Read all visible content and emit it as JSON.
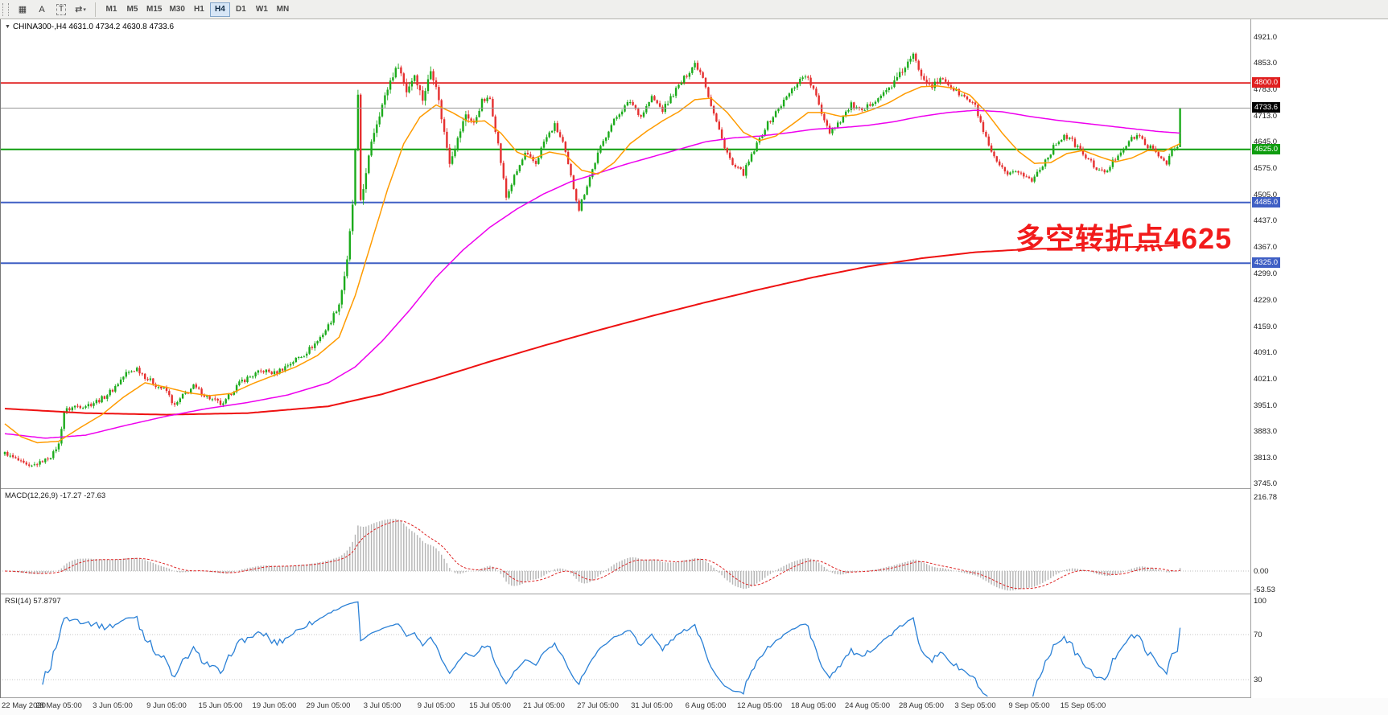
{
  "toolbar": {
    "icons": [
      {
        "name": "window-grid-icon",
        "glyph": "▦"
      },
      {
        "name": "font-tool-icon",
        "glyph": "A"
      },
      {
        "name": "text-tool-icon",
        "glyph": "T",
        "boxed": true
      },
      {
        "name": "cycle-arrows-icon",
        "glyph": "⇄",
        "caret": "▾"
      }
    ],
    "timeframes": [
      "M1",
      "M5",
      "M15",
      "M30",
      "H1",
      "H4",
      "D1",
      "W1",
      "MN"
    ],
    "active_timeframe": "H4"
  },
  "chart": {
    "symbol_line": "CHINA300-,H4 4631.0 4734.2 4630.8 4733.6",
    "symbol": "CHINA300-",
    "timeframe": "H4",
    "annotation": "多空转折点4625",
    "shift_marker": "▲",
    "price_axis_labels": [
      "4921.0",
      "4853.0",
      "4783.0",
      "4713.0",
      "4645.0",
      "4575.0",
      "4505.0",
      "4437.0",
      "4367.0",
      "4299.0",
      "4229.0",
      "4159.0",
      "4091.0",
      "4021.0",
      "3951.0",
      "3883.0",
      "3813.0",
      "3745.0"
    ],
    "hlines": [
      {
        "price": 4800.0,
        "label": "4800.0",
        "color": "#e01f1f",
        "width": 1.8
      },
      {
        "price": 4625.0,
        "label": "4625.0",
        "color": "#0f9d0f",
        "width": 2
      },
      {
        "price": 4485.0,
        "label": "4485.0",
        "color": "#3f5fc4",
        "width": 2
      },
      {
        "price": 4325.0,
        "label": "4325.0",
        "color": "#3f5fc4",
        "width": 2
      }
    ],
    "current_price": {
      "value": 4733.6,
      "label": "4733.6",
      "color": "#000000"
    },
    "time_axis": [
      "22 May 2020",
      "28 May 05:00",
      "3 Jun 05:00",
      "9 Jun 05:00",
      "15 Jun 05:00",
      "19 Jun 05:00",
      "29 Jun 05:00",
      "3 Jul 05:00",
      "9 Jul 05:00",
      "15 Jul 05:00",
      "21 Jul 05:00",
      "27 Jul 05:00",
      "31 Jul 05:00",
      "6 Aug 05:00",
      "12 Aug 05:00",
      "18 Aug 05:00",
      "24 Aug 05:00",
      "28 Aug 05:00",
      "3 Sep 05:00",
      "9 Sep 05:00",
      "15 Sep 05:00"
    ]
  },
  "macd_panel": {
    "title": "MACD(12,26,9) -17.27 -27.63",
    "axis": [
      {
        "label": "216.78",
        "value": 216.78
      },
      {
        "label": "0.00",
        "value": 0
      },
      {
        "label": "-53.53",
        "value": -53.53
      }
    ]
  },
  "rsi_panel": {
    "title": "RSI(14) 57.8797",
    "axis": [
      {
        "label": "100",
        "value": 100
      },
      {
        "label": "70",
        "value": 70
      },
      {
        "label": "30",
        "value": 30
      }
    ]
  },
  "chart_data": {
    "type": "candlestick",
    "bars": 437,
    "price_range": [
      3745.0,
      4921.0
    ],
    "last_candle": {
      "open": 4631.0,
      "high": 4734.2,
      "low": 4630.8,
      "close": 4733.6
    },
    "colors": {
      "up": "#1cab1c",
      "down": "#e53030",
      "ma_fast": "#ff9b00",
      "ma_mid": "#ee00ee",
      "ma_slow": "#ee1111",
      "macd_hist": "#b4b4b4",
      "macd_signal": "#dd2222",
      "rsi": "#2a80d6"
    },
    "price_path_anchors": [
      [
        0,
        3825
      ],
      [
        5,
        3805
      ],
      [
        9,
        3788
      ],
      [
        13,
        3800
      ],
      [
        17,
        3815
      ],
      [
        20,
        3848
      ],
      [
        22,
        3935
      ],
      [
        26,
        3948
      ],
      [
        31,
        3952
      ],
      [
        36,
        3968
      ],
      [
        40,
        3992
      ],
      [
        45,
        4035
      ],
      [
        49,
        4048
      ],
      [
        53,
        4020
      ],
      [
        57,
        4000
      ],
      [
        60,
        3988
      ],
      [
        63,
        3948
      ],
      [
        66,
        3975
      ],
      [
        70,
        4000
      ],
      [
        74,
        3978
      ],
      [
        78,
        3962
      ],
      [
        81,
        3950
      ],
      [
        84,
        3985
      ],
      [
        88,
        4015
      ],
      [
        92,
        4030
      ],
      [
        96,
        4042
      ],
      [
        100,
        4035
      ],
      [
        104,
        4052
      ],
      [
        108,
        4072
      ],
      [
        112,
        4092
      ],
      [
        116,
        4120
      ],
      [
        120,
        4160
      ],
      [
        124,
        4218
      ],
      [
        127,
        4330
      ],
      [
        129,
        4480
      ],
      [
        131,
        4762
      ],
      [
        132,
        4492
      ],
      [
        134,
        4558
      ],
      [
        136,
        4648
      ],
      [
        140,
        4742
      ],
      [
        143,
        4806
      ],
      [
        146,
        4848
      ],
      [
        149,
        4778
      ],
      [
        152,
        4822
      ],
      [
        155,
        4756
      ],
      [
        158,
        4832
      ],
      [
        160,
        4795
      ],
      [
        162,
        4708
      ],
      [
        165,
        4592
      ],
      [
        168,
        4652
      ],
      [
        171,
        4718
      ],
      [
        174,
        4692
      ],
      [
        177,
        4752
      ],
      [
        180,
        4758
      ],
      [
        183,
        4638
      ],
      [
        186,
        4498
      ],
      [
        189,
        4552
      ],
      [
        193,
        4612
      ],
      [
        197,
        4588
      ],
      [
        200,
        4645
      ],
      [
        204,
        4688
      ],
      [
        207,
        4642
      ],
      [
        210,
        4552
      ],
      [
        213,
        4468
      ],
      [
        216,
        4532
      ],
      [
        220,
        4612
      ],
      [
        224,
        4678
      ],
      [
        228,
        4722
      ],
      [
        232,
        4752
      ],
      [
        236,
        4712
      ],
      [
        240,
        4762
      ],
      [
        244,
        4728
      ],
      [
        248,
        4772
      ],
      [
        252,
        4812
      ],
      [
        256,
        4852
      ],
      [
        259,
        4818
      ],
      [
        262,
        4742
      ],
      [
        266,
        4652
      ],
      [
        270,
        4582
      ],
      [
        274,
        4562
      ],
      [
        278,
        4622
      ],
      [
        282,
        4682
      ],
      [
        286,
        4722
      ],
      [
        290,
        4762
      ],
      [
        294,
        4802
      ],
      [
        297,
        4822
      ],
      [
        300,
        4782
      ],
      [
        303,
        4722
      ],
      [
        306,
        4672
      ],
      [
        310,
        4702
      ],
      [
        314,
        4742
      ],
      [
        318,
        4722
      ],
      [
        322,
        4752
      ],
      [
        326,
        4772
      ],
      [
        330,
        4802
      ],
      [
        334,
        4842
      ],
      [
        337,
        4872
      ],
      [
        340,
        4822
      ],
      [
        344,
        4792
      ],
      [
        348,
        4812
      ],
      [
        352,
        4782
      ],
      [
        356,
        4762
      ],
      [
        360,
        4738
      ],
      [
        363,
        4672
      ],
      [
        366,
        4612
      ],
      [
        369,
        4582
      ],
      [
        372,
        4552
      ],
      [
        375,
        4572
      ],
      [
        378,
        4556
      ],
      [
        381,
        4542
      ],
      [
        384,
        4576
      ],
      [
        387,
        4606
      ],
      [
        390,
        4642
      ],
      [
        393,
        4662
      ],
      [
        396,
        4646
      ],
      [
        399,
        4622
      ],
      [
        402,
        4596
      ],
      [
        405,
        4576
      ],
      [
        408,
        4560
      ],
      [
        411,
        4592
      ],
      [
        414,
        4622
      ],
      [
        417,
        4646
      ],
      [
        420,
        4662
      ],
      [
        423,
        4642
      ],
      [
        426,
        4622
      ],
      [
        429,
        4602
      ],
      [
        431,
        4592
      ],
      [
        433,
        4622
      ],
      [
        435,
        4633
      ],
      [
        436,
        4733.6
      ]
    ],
    "ma_fast_anchors": [
      [
        0,
        3902
      ],
      [
        6,
        3868
      ],
      [
        12,
        3852
      ],
      [
        20,
        3856
      ],
      [
        28,
        3892
      ],
      [
        36,
        3926
      ],
      [
        44,
        3972
      ],
      [
        52,
        4010
      ],
      [
        60,
        3998
      ],
      [
        68,
        3984
      ],
      [
        76,
        3976
      ],
      [
        84,
        3982
      ],
      [
        92,
        4008
      ],
      [
        100,
        4030
      ],
      [
        108,
        4052
      ],
      [
        116,
        4082
      ],
      [
        124,
        4130
      ],
      [
        130,
        4240
      ],
      [
        136,
        4380
      ],
      [
        142,
        4520
      ],
      [
        148,
        4640
      ],
      [
        154,
        4710
      ],
      [
        160,
        4742
      ],
      [
        166,
        4722
      ],
      [
        172,
        4698
      ],
      [
        178,
        4700
      ],
      [
        184,
        4668
      ],
      [
        190,
        4618
      ],
      [
        196,
        4600
      ],
      [
        202,
        4618
      ],
      [
        208,
        4610
      ],
      [
        214,
        4570
      ],
      [
        220,
        4560
      ],
      [
        226,
        4590
      ],
      [
        232,
        4640
      ],
      [
        238,
        4672
      ],
      [
        244,
        4700
      ],
      [
        250,
        4724
      ],
      [
        256,
        4756
      ],
      [
        262,
        4760
      ],
      [
        268,
        4722
      ],
      [
        274,
        4670
      ],
      [
        280,
        4648
      ],
      [
        286,
        4660
      ],
      [
        292,
        4690
      ],
      [
        298,
        4722
      ],
      [
        304,
        4722
      ],
      [
        310,
        4712
      ],
      [
        316,
        4716
      ],
      [
        322,
        4730
      ],
      [
        328,
        4748
      ],
      [
        334,
        4772
      ],
      [
        340,
        4790
      ],
      [
        346,
        4792
      ],
      [
        352,
        4786
      ],
      [
        358,
        4768
      ],
      [
        364,
        4724
      ],
      [
        370,
        4668
      ],
      [
        376,
        4620
      ],
      [
        382,
        4588
      ],
      [
        388,
        4590
      ],
      [
        394,
        4614
      ],
      [
        400,
        4622
      ],
      [
        406,
        4606
      ],
      [
        412,
        4592
      ],
      [
        418,
        4602
      ],
      [
        424,
        4622
      ],
      [
        430,
        4620
      ],
      [
        436,
        4640
      ]
    ],
    "ma_mid_anchors": [
      [
        0,
        3876
      ],
      [
        15,
        3864
      ],
      [
        30,
        3872
      ],
      [
        45,
        3898
      ],
      [
        60,
        3922
      ],
      [
        75,
        3942
      ],
      [
        90,
        3958
      ],
      [
        105,
        3978
      ],
      [
        120,
        4010
      ],
      [
        130,
        4052
      ],
      [
        140,
        4120
      ],
      [
        150,
        4200
      ],
      [
        160,
        4288
      ],
      [
        170,
        4360
      ],
      [
        180,
        4420
      ],
      [
        190,
        4468
      ],
      [
        200,
        4508
      ],
      [
        210,
        4540
      ],
      [
        220,
        4562
      ],
      [
        230,
        4585
      ],
      [
        240,
        4605
      ],
      [
        250,
        4625
      ],
      [
        260,
        4645
      ],
      [
        270,
        4655
      ],
      [
        280,
        4660
      ],
      [
        290,
        4668
      ],
      [
        300,
        4678
      ],
      [
        310,
        4682
      ],
      [
        320,
        4688
      ],
      [
        330,
        4698
      ],
      [
        340,
        4712
      ],
      [
        350,
        4722
      ],
      [
        360,
        4728
      ],
      [
        370,
        4724
      ],
      [
        380,
        4712
      ],
      [
        390,
        4702
      ],
      [
        400,
        4694
      ],
      [
        410,
        4686
      ],
      [
        420,
        4678
      ],
      [
        428,
        4672
      ],
      [
        436,
        4668
      ]
    ],
    "ma_slow_anchors": [
      [
        0,
        3942
      ],
      [
        30,
        3930
      ],
      [
        60,
        3926
      ],
      [
        90,
        3930
      ],
      [
        120,
        3948
      ],
      [
        140,
        3980
      ],
      [
        160,
        4022
      ],
      [
        180,
        4066
      ],
      [
        200,
        4108
      ],
      [
        220,
        4148
      ],
      [
        240,
        4186
      ],
      [
        260,
        4222
      ],
      [
        280,
        4256
      ],
      [
        300,
        4288
      ],
      [
        320,
        4316
      ],
      [
        340,
        4338
      ],
      [
        360,
        4354
      ],
      [
        380,
        4362
      ],
      [
        400,
        4366
      ],
      [
        420,
        4368
      ],
      [
        436,
        4372
      ]
    ]
  }
}
